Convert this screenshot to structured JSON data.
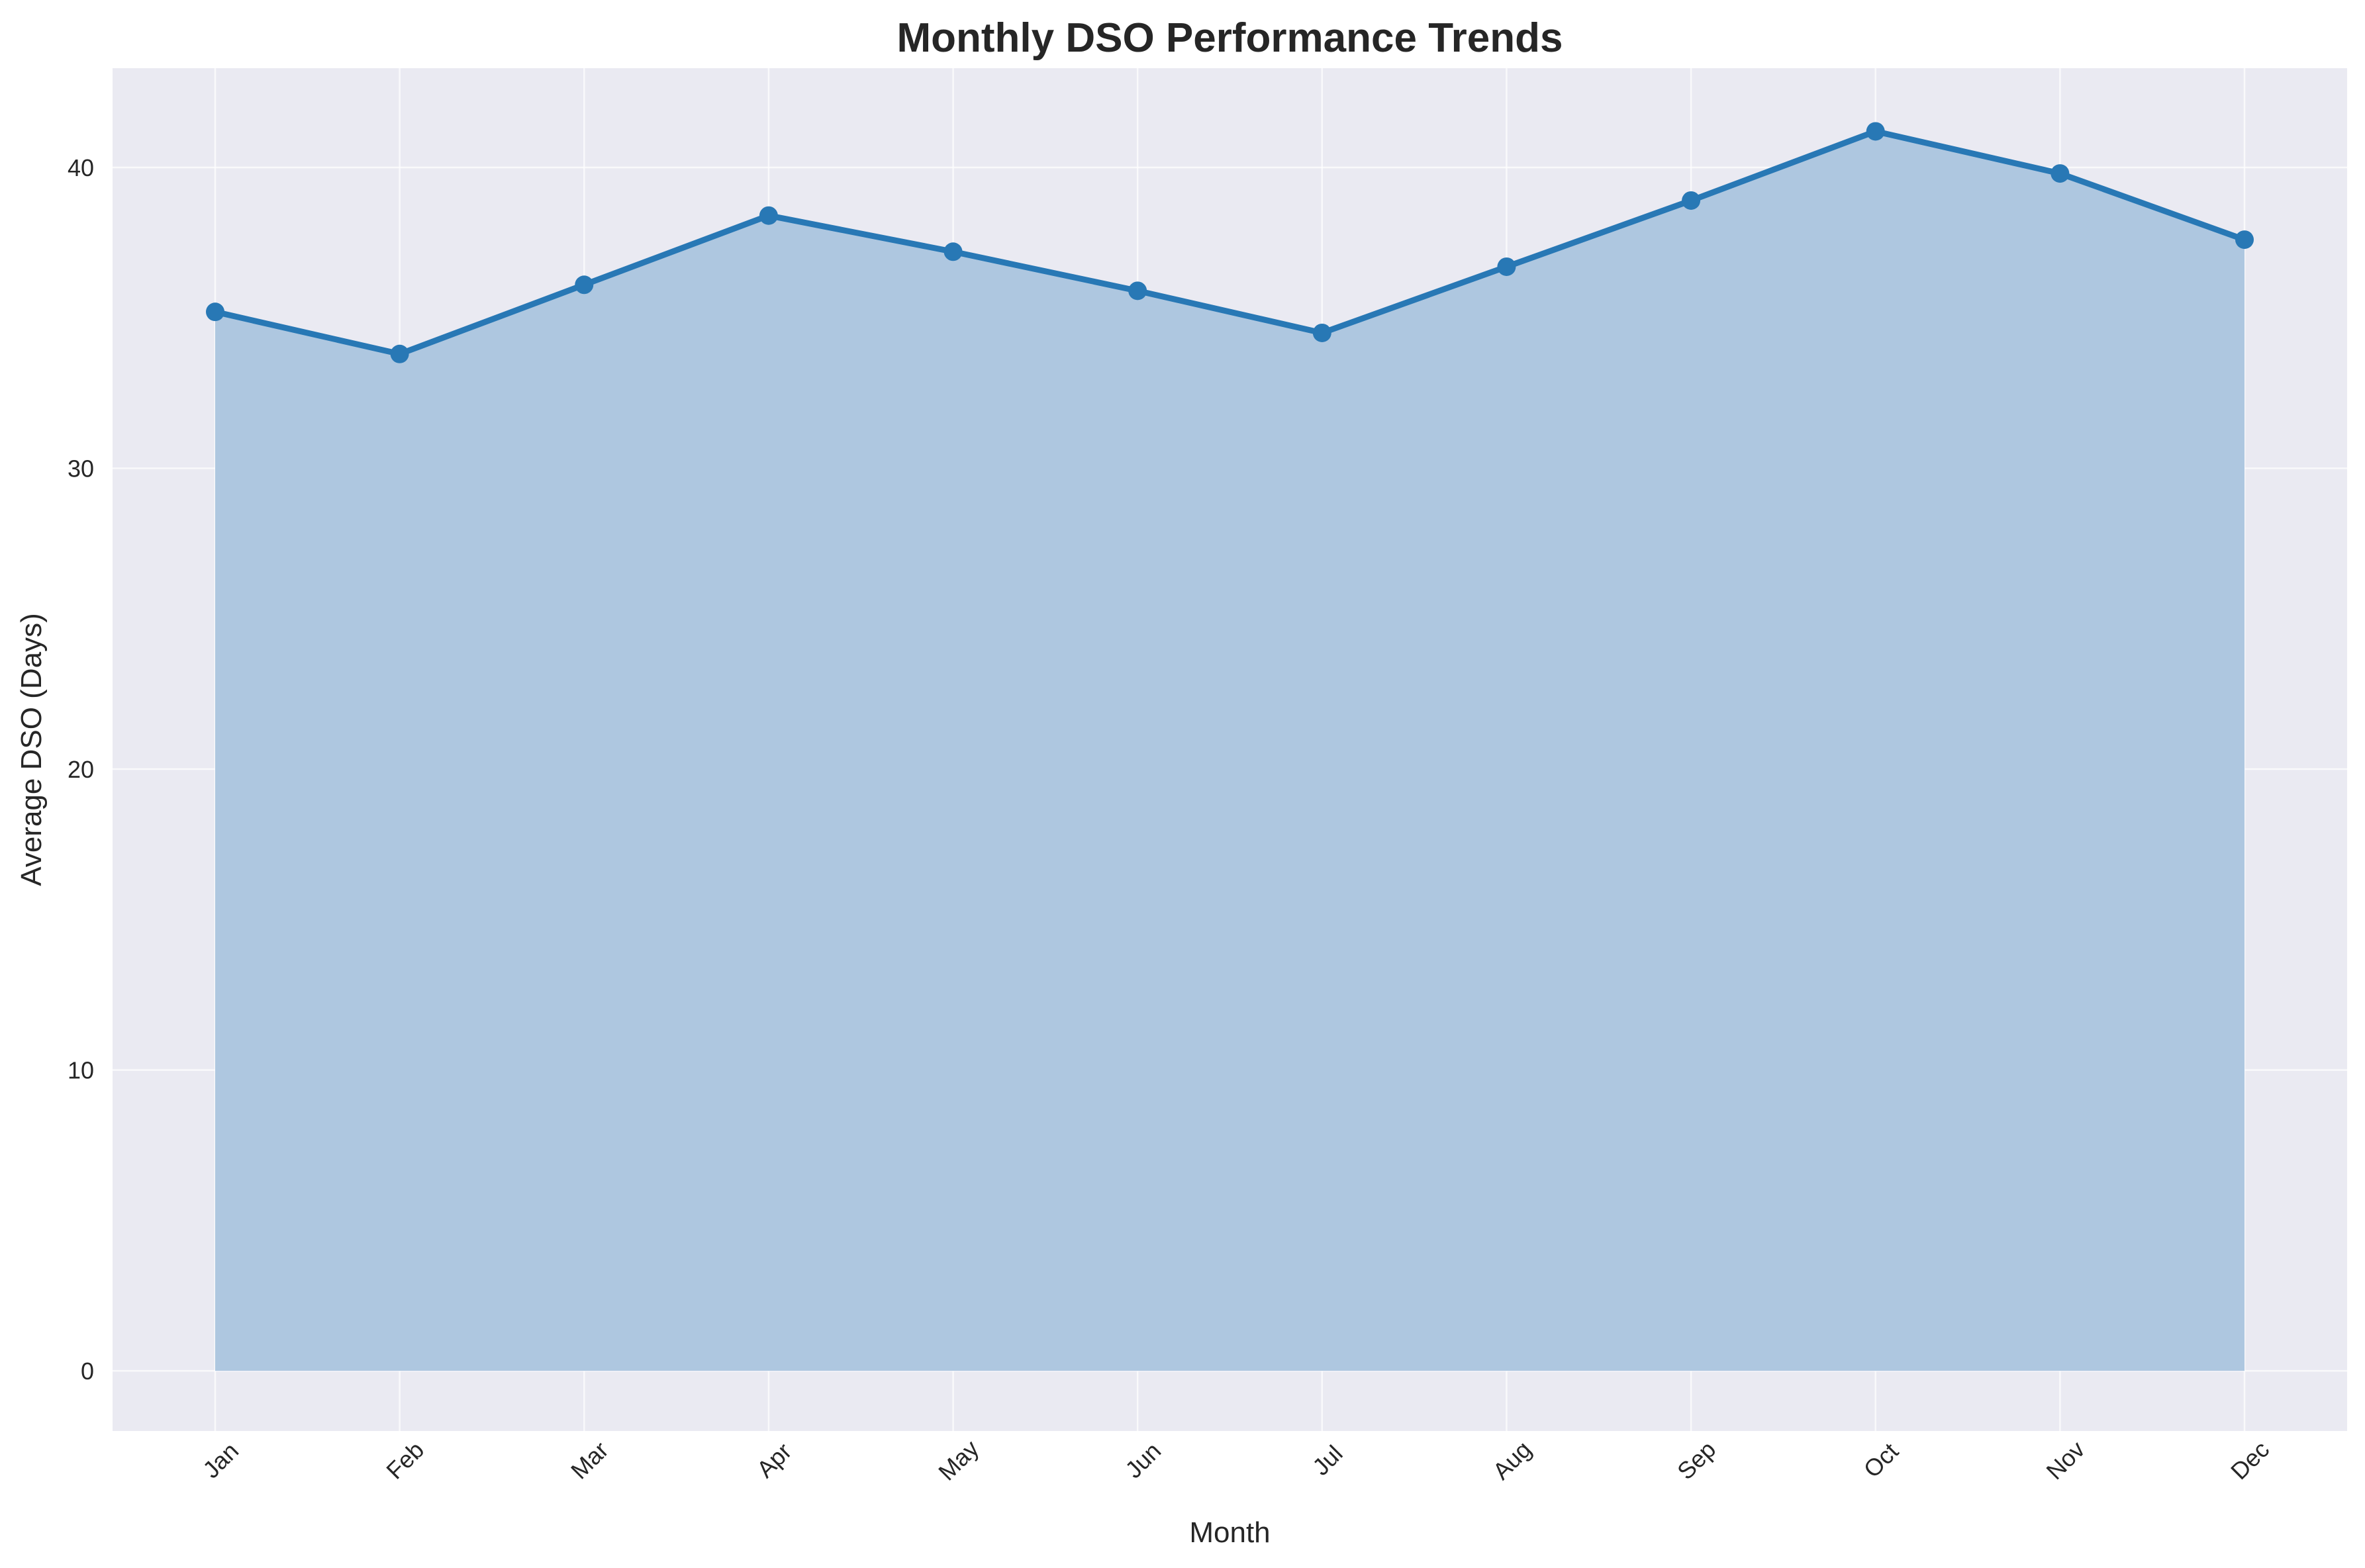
{
  "chart_data": {
    "type": "area",
    "title": "Monthly DSO Performance Trends",
    "xlabel": "Month",
    "ylabel": "Average DSO (Days)",
    "categories": [
      "Jan",
      "Feb",
      "Mar",
      "Apr",
      "May",
      "Jun",
      "Jul",
      "Aug",
      "Sep",
      "Oct",
      "Nov",
      "Dec"
    ],
    "series": [
      {
        "values": [
          35.2,
          33.8,
          36.1,
          38.4,
          37.2,
          35.9,
          34.5,
          36.7,
          38.9,
          41.2,
          39.8,
          37.6
        ]
      }
    ],
    "ylim": [
      -2,
      43.3
    ],
    "yticks": [
      "0",
      "10",
      "20",
      "30",
      "40"
    ],
    "grid": true,
    "legend": "none",
    "colors": {
      "line": "#2878b5",
      "fill": "#aec7e0",
      "plot_background": "#eaeaf2",
      "grid": "#ffffff",
      "text": "#262626"
    }
  }
}
